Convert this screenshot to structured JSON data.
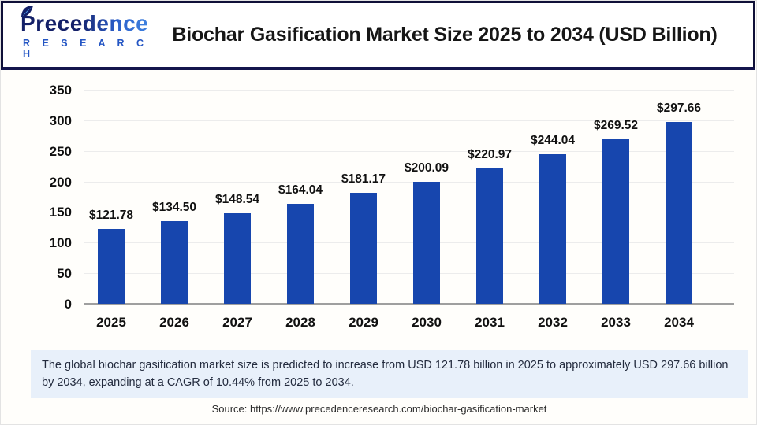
{
  "header": {
    "logo": {
      "brand": "Precedence",
      "sub": "R E S E A R C H"
    },
    "title": "Biochar Gasification Market Size 2025 to 2034 (USD Billion)"
  },
  "chart_data": {
    "type": "bar",
    "title": "Biochar Gasification Market Size 2025 to 2034 (USD Billion)",
    "categories": [
      "2025",
      "2026",
      "2027",
      "2028",
      "2029",
      "2030",
      "2031",
      "2032",
      "2033",
      "2034"
    ],
    "values": [
      121.78,
      134.5,
      148.54,
      164.04,
      181.17,
      200.09,
      220.97,
      244.04,
      269.52,
      297.66
    ],
    "value_labels": [
      "$121.78",
      "$134.50",
      "$148.54",
      "$164.04",
      "$181.17",
      "$200.09",
      "$220.97",
      "$244.04",
      "$269.52",
      "$297.66"
    ],
    "xlabel": "",
    "ylabel": "",
    "ylim": [
      0,
      350
    ],
    "ytick_step": 50,
    "yticks": [
      "0",
      "50",
      "100",
      "150",
      "200",
      "250",
      "300",
      "350"
    ],
    "grid": true,
    "legend": "none",
    "bar_color": "#1746ae"
  },
  "summary": {
    "text": "The global biochar gasification market size is predicted to increase from USD 121.78 billion in 2025 to approximately USD 297.66 billion by 2034, expanding at a CAGR of 10.44% from 2025 to 2034."
  },
  "source": {
    "text": "Source: https://www.precedenceresearch.com/biochar-gasification-market"
  },
  "colors": {
    "bar": "#1746ae",
    "header_border": "#0f1038",
    "summary_bg": "#e8f0fa",
    "grid": "#ececec",
    "axis_line": "#9f9f9f",
    "brand_navy": "#142068",
    "brand_blue": "#2456c4"
  }
}
